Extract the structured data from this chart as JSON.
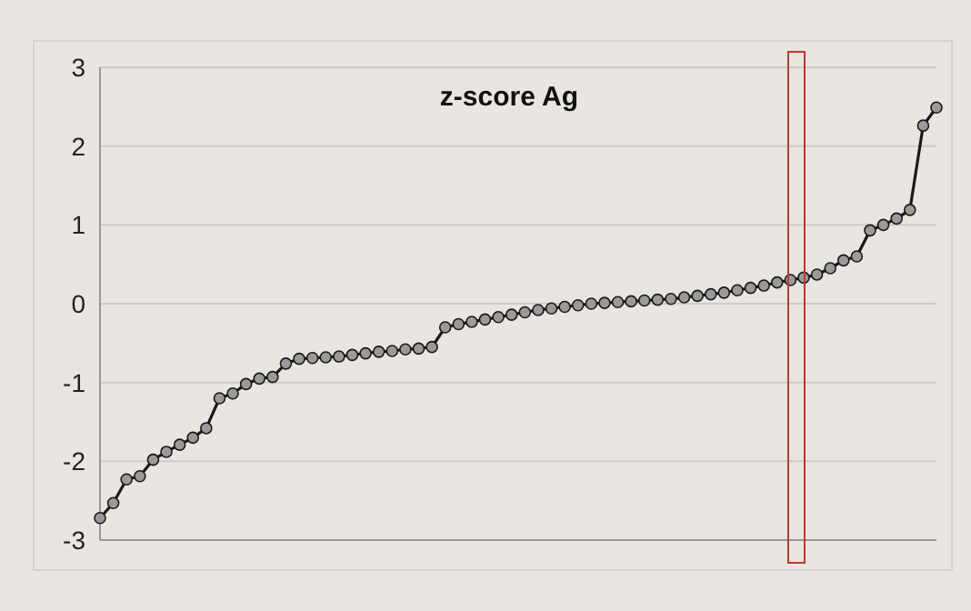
{
  "chart_data": {
    "type": "line",
    "title": "z-score Ag",
    "categories": [
      null,
      null,
      null,
      null,
      null,
      null,
      null,
      null,
      null,
      null,
      null,
      null,
      null,
      null,
      null,
      null,
      null,
      null,
      null,
      null,
      null,
      null,
      null,
      null,
      null,
      null,
      null,
      null,
      null,
      null,
      null,
      null,
      null,
      null,
      null,
      null,
      null,
      null,
      null,
      null,
      null,
      null,
      null,
      null,
      null,
      null,
      null,
      null,
      null,
      null,
      null,
      null,
      null,
      null,
      null,
      null,
      null,
      null,
      null,
      null,
      null,
      null,
      null,
      null
    ],
    "series": [
      {
        "color": "#1a1a1a",
        "values": [
          -2.72,
          -2.53,
          -2.23,
          -2.19,
          -1.98,
          -1.88,
          -1.79,
          -1.7,
          -1.58,
          -1.2,
          -1.14,
          -1.02,
          -0.95,
          -0.93,
          -0.76,
          -0.7,
          -0.69,
          -0.68,
          -0.67,
          -0.65,
          -0.63,
          -0.61,
          -0.6,
          -0.58,
          -0.57,
          -0.55,
          -0.3,
          -0.26,
          -0.23,
          -0.2,
          -0.17,
          -0.14,
          -0.11,
          -0.08,
          -0.06,
          -0.04,
          -0.02,
          0.0,
          0.01,
          0.02,
          0.03,
          0.04,
          0.05,
          0.06,
          0.08,
          0.1,
          0.12,
          0.14,
          0.17,
          0.2,
          0.23,
          0.27,
          0.3,
          0.33,
          0.37,
          0.45,
          0.55,
          0.6,
          0.93,
          1.0,
          1.08,
          1.19,
          2.26,
          2.49
        ]
      }
    ],
    "ylim": [
      -3,
      3
    ],
    "yticks": [
      -3,
      -2,
      -1,
      0,
      1,
      2,
      3
    ],
    "grid": "y",
    "marker": "circle",
    "line_style": "solid",
    "tick_labels": "y"
  }
}
